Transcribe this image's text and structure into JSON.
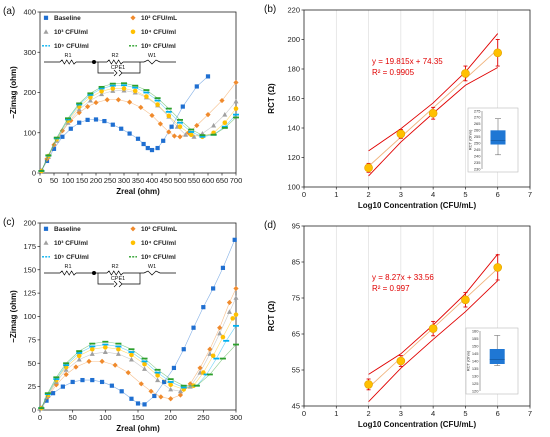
{
  "chart_data": [
    {
      "panel": "(a)",
      "type": "scatter",
      "xlabel": "Zreal (ohm)",
      "ylabel": "−Zimag (ohm)",
      "xlim": [
        0,
        700
      ],
      "ylim": [
        0,
        400
      ],
      "xticks": [
        "0",
        "50",
        "100",
        "150",
        "200",
        "250",
        "300",
        "350",
        "400",
        "450",
        "500",
        "550",
        "600",
        "650",
        "700"
      ],
      "yticks": [
        "0",
        "100",
        "200",
        "300",
        "400"
      ],
      "legend": {
        "position": "top",
        "entries": [
          "Baseline",
          "10² CFU/mL",
          "10³ CFU/ml",
          "10⁴ CFU/ml",
          "10⁵ CFU/ml",
          "10⁶ CFU/ml"
        ]
      },
      "circuit_labels": [
        "R1",
        "R2",
        "CPE1",
        "W1"
      ],
      "series": [
        {
          "name": "Baseline",
          "color": "#1f6fd1",
          "marker": "square",
          "x": [
            5,
            25,
            50,
            80,
            110,
            140,
            170,
            200,
            230,
            260,
            290,
            320,
            350,
            370,
            385,
            400,
            420,
            440,
            470,
            510,
            560,
            600
          ],
          "y": [
            5,
            30,
            60,
            90,
            110,
            125,
            132,
            133,
            129,
            120,
            110,
            98,
            85,
            72,
            62,
            57,
            62,
            80,
            115,
            165,
            215,
            240
          ]
        },
        {
          "name": "10² CFU/mL",
          "color": "#f08a2c",
          "marker": "diamond",
          "x": [
            5,
            25,
            50,
            80,
            110,
            140,
            170,
            200,
            240,
            280,
            320,
            360,
            400,
            430,
            460,
            480,
            500,
            530,
            560,
            600,
            650,
            700
          ],
          "y": [
            5,
            35,
            70,
            105,
            130,
            150,
            165,
            175,
            182,
            182,
            176,
            163,
            143,
            122,
            102,
            92,
            90,
            100,
            118,
            145,
            180,
            225
          ]
        },
        {
          "name": "10³ CFU/ml",
          "color": "#a0a0a0",
          "marker": "triangle",
          "x": [
            5,
            30,
            60,
            100,
            140,
            180,
            220,
            260,
            300,
            340,
            380,
            420,
            460,
            490,
            520,
            550,
            580,
            620,
            660,
            700
          ],
          "y": [
            5,
            40,
            80,
            125,
            158,
            180,
            196,
            204,
            205,
            200,
            188,
            168,
            140,
            115,
            95,
            90,
            98,
            118,
            145,
            178
          ]
        },
        {
          "name": "10⁴ CFU/ml",
          "color": "#ffc000",
          "marker": "circle",
          "x": [
            5,
            30,
            60,
            100,
            140,
            180,
            220,
            260,
            300,
            340,
            380,
            420,
            460,
            500,
            540,
            580,
            620,
            660,
            700
          ],
          "y": [
            5,
            42,
            84,
            130,
            165,
            188,
            203,
            210,
            210,
            204,
            190,
            170,
            142,
            115,
            95,
            90,
            100,
            125,
            160
          ]
        },
        {
          "name": "10⁵ CFU/ml",
          "color": "#00b0f0",
          "marker": "dash",
          "x": [
            5,
            30,
            60,
            100,
            140,
            180,
            220,
            260,
            300,
            340,
            380,
            420,
            460,
            500,
            540,
            580,
            620,
            660,
            700
          ],
          "y": [
            5,
            43,
            86,
            133,
            170,
            194,
            210,
            217,
            218,
            212,
            200,
            180,
            152,
            125,
            102,
            90,
            95,
            115,
            145
          ]
        },
        {
          "name": "10⁶ CFU/ml",
          "color": "#2ca02c",
          "marker": "dash",
          "x": [
            5,
            30,
            60,
            100,
            140,
            180,
            220,
            260,
            300,
            340,
            380,
            420,
            460,
            500,
            540,
            580,
            620,
            660,
            700
          ],
          "y": [
            5,
            44,
            88,
            136,
            173,
            198,
            214,
            222,
            223,
            217,
            206,
            186,
            160,
            132,
            108,
            94,
            95,
            112,
            138
          ]
        }
      ]
    },
    {
      "panel": "(b)",
      "type": "scatter",
      "xlabel": "Log10 Concentration (CFU/mL)",
      "ylabel": "RCT (Ω)",
      "xlim": [
        0,
        7
      ],
      "ylim": [
        100,
        220
      ],
      "xticks": [
        "0",
        "1",
        "2",
        "3",
        "4",
        "5",
        "6",
        "7"
      ],
      "yticks": [
        "100",
        "120",
        "140",
        "160",
        "180",
        "200",
        "220"
      ],
      "points": {
        "x": [
          2,
          3,
          4,
          5,
          6
        ],
        "y": [
          113,
          136,
          150,
          177,
          191
        ],
        "err": [
          3,
          3,
          4,
          5,
          9
        ]
      },
      "fit": {
        "equation": "y = 19.815x + 74.35",
        "r2": "R² = 0.9905",
        "slope": 19.815,
        "intercept": 74.35
      },
      "band": {
        "upper": [
          124.5,
          139.5,
          157,
          178,
          204
        ],
        "lower": [
          107.5,
          130.5,
          150,
          169,
          181
        ]
      },
      "inset": {
        "yticks": [
          "230",
          "235",
          "240",
          "245",
          "250",
          "255",
          "260",
          "265",
          "270",
          "275"
        ],
        "ylabel": "RCT (Ohm)",
        "box": {
          "min": 241,
          "q1": 249,
          "median": 252,
          "q3": 260,
          "max": 269
        }
      }
    },
    {
      "panel": "(c)",
      "type": "scatter",
      "xlabel": "Zreal (ohm)",
      "ylabel": "−Zimag (ohm)",
      "xlim": [
        0,
        300
      ],
      "ylim": [
        0,
        200
      ],
      "xticks": [
        "0",
        "50",
        "100",
        "150",
        "200",
        "250",
        "300"
      ],
      "yticks": [
        "0",
        "25",
        "50",
        "75",
        "100",
        "125",
        "150",
        "175",
        "200"
      ],
      "legend": {
        "position": "top",
        "entries": [
          "Baseline",
          "10² CFU/mL",
          "10³ CFU/ml",
          "10⁴ CFU/ml",
          "10⁵ CFU/ml",
          "10⁶ CFU/ml"
        ]
      },
      "circuit_labels": [
        "R1",
        "R2",
        "CPE1",
        "W1"
      ],
      "series": [
        {
          "name": "Baseline",
          "color": "#1f6fd1",
          "marker": "square",
          "x": [
            2,
            10,
            20,
            35,
            50,
            65,
            80,
            95,
            110,
            125,
            140,
            150,
            160,
            175,
            190,
            205,
            220,
            235,
            250,
            265,
            280,
            298
          ],
          "y": [
            2,
            10,
            18,
            25,
            30,
            32,
            32,
            30,
            26,
            20,
            12,
            7,
            6,
            15,
            30,
            45,
            65,
            88,
            110,
            130,
            152,
            182
          ]
        },
        {
          "name": "10² CFU/mL",
          "color": "#f08a2c",
          "marker": "diamond",
          "x": [
            2,
            12,
            25,
            40,
            55,
            75,
            95,
            115,
            135,
            155,
            170,
            185,
            200,
            215,
            230,
            245,
            260,
            275,
            290,
            300
          ],
          "y": [
            2,
            14,
            27,
            38,
            46,
            52,
            52,
            48,
            40,
            28,
            20,
            14,
            12,
            16,
            28,
            45,
            65,
            88,
            115,
            130
          ]
        },
        {
          "name": "10³ CFU/ml",
          "color": "#a0a0a0",
          "marker": "triangle",
          "x": [
            2,
            12,
            25,
            40,
            60,
            80,
            100,
            120,
            140,
            160,
            180,
            200,
            215,
            230,
            245,
            260,
            275,
            290,
            300
          ],
          "y": [
            2,
            15,
            30,
            43,
            54,
            60,
            62,
            60,
            54,
            44,
            32,
            22,
            20,
            25,
            40,
            60,
            82,
            105,
            120
          ]
        },
        {
          "name": "10⁴ CFU/ml",
          "color": "#ffc000",
          "marker": "circle",
          "x": [
            2,
            12,
            25,
            40,
            60,
            80,
            100,
            120,
            140,
            160,
            180,
            200,
            220,
            235,
            250,
            265,
            280,
            295,
            300
          ],
          "y": [
            2,
            16,
            32,
            46,
            58,
            65,
            67,
            65,
            59,
            49,
            37,
            27,
            22,
            26,
            40,
            58,
            78,
            98,
            102
          ]
        },
        {
          "name": "10⁵ CFU/ml",
          "color": "#00b0f0",
          "marker": "dash",
          "x": [
            2,
            12,
            25,
            40,
            60,
            80,
            100,
            120,
            140,
            160,
            180,
            200,
            220,
            240,
            255,
            270,
            285,
            300
          ],
          "y": [
            2,
            17,
            33,
            48,
            61,
            68,
            70,
            68,
            62,
            52,
            40,
            30,
            24,
            26,
            38,
            55,
            74,
            90
          ]
        },
        {
          "name": "10⁶ CFU/ml",
          "color": "#2ca02c",
          "marker": "dash",
          "x": [
            2,
            12,
            25,
            40,
            60,
            80,
            100,
            120,
            140,
            160,
            180,
            200,
            220,
            240,
            260,
            280,
            300
          ],
          "y": [
            2,
            18,
            35,
            50,
            63,
            71,
            73,
            71,
            65,
            55,
            43,
            33,
            26,
            26,
            38,
            55,
            70
          ]
        }
      ]
    },
    {
      "panel": "(d)",
      "type": "scatter",
      "xlabel": "Log10 Concentration (CFU/mL)",
      "ylabel": "RCT (Ω)",
      "xlim": [
        0,
        7
      ],
      "ylim": [
        45,
        95
      ],
      "xticks": [
        "0",
        "1",
        "2",
        "3",
        "4",
        "5",
        "6",
        "7"
      ],
      "yticks": [
        "45",
        "55",
        "65",
        "75",
        "85",
        "95"
      ],
      "points": {
        "x": [
          2,
          3,
          4,
          5,
          6
        ],
        "y": [
          51,
          57.5,
          66.5,
          74.5,
          83.5
        ],
        "err": [
          1.5,
          1.5,
          2,
          2,
          3.5
        ]
      },
      "fit": {
        "equation": "y = 8.27x + 33.56",
        "r2": "R² = 0.997",
        "slope": 8.27,
        "intercept": 33.56
      },
      "band": {
        "upper": [
          53.8,
          59.5,
          67.5,
          76.2,
          87.2
        ],
        "lower": [
          46.2,
          55.5,
          63.5,
          71.2,
          79.8
        ]
      },
      "inset": {
        "yticks": [
          "120",
          "125",
          "130",
          "135",
          "140",
          "145",
          "150",
          "155",
          "160"
        ],
        "ylabel": "RCT (Ohm)",
        "box": {
          "min": 137,
          "q1": 138,
          "median": 141,
          "q3": 148,
          "max": 157
        }
      }
    }
  ]
}
